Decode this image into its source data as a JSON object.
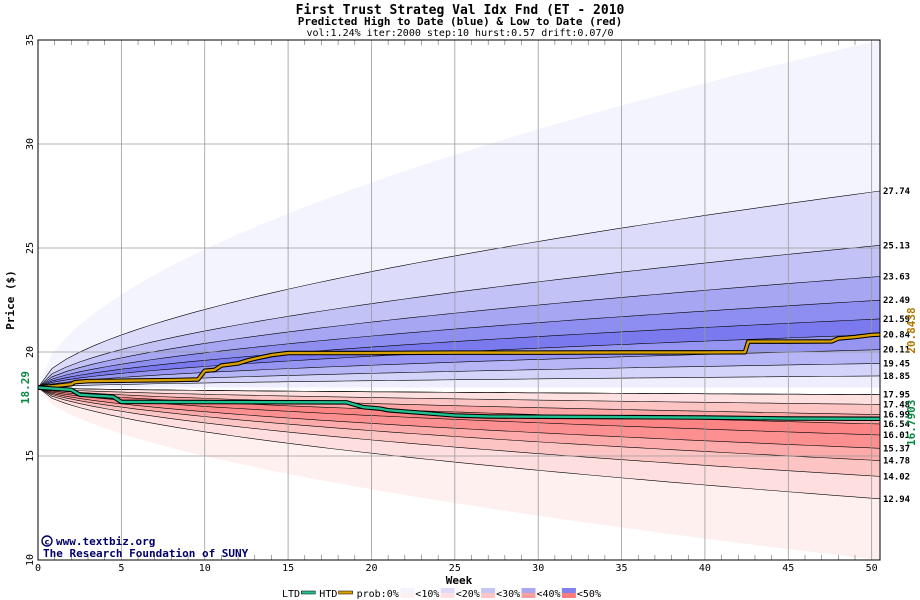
{
  "chart_data": {
    "type": "area",
    "title": "First Trust Strateg Val Idx Fnd (ET - 2010",
    "subtitle": "Predicted High to Date (blue) &  Low to Date (red)",
    "params": "vol:1.24% iter:2000 step:10 hurst:0.57 drift:0.07/0",
    "xlabel": "Week",
    "ylabel": "Price ($)",
    "xlim": [
      0,
      50.5
    ],
    "ylim": [
      10,
      35
    ],
    "x_ticks": [
      0,
      5,
      10,
      15,
      20,
      25,
      30,
      35,
      40,
      45,
      50
    ],
    "y_ticks": [
      10,
      15,
      20,
      25,
      30,
      35
    ],
    "grid": true,
    "start_price": 18.29,
    "start_label": "18.29",
    "high_bands": [
      {
        "end": 35.0,
        "color": "#f4f4fe"
      },
      {
        "end": 27.74,
        "color": "#dcdcfa"
      },
      {
        "end": 25.13,
        "color": "#c2c2f6"
      },
      {
        "end": 23.63,
        "color": "#a6a6f2"
      },
      {
        "end": 22.49,
        "color": "#8e8ef0"
      },
      {
        "end": 21.59,
        "color": "#7a7aee"
      },
      {
        "end": 20.84,
        "color": "#9696f2"
      },
      {
        "end": 20.11,
        "color": "#b6b6f6"
      },
      {
        "end": 19.45,
        "color": "#d4d4fa"
      },
      {
        "end": 18.85,
        "color": "#eeeefe"
      },
      {
        "end": 17.95,
        "color": "#ffffff"
      }
    ],
    "low_bands": [
      {
        "end": 10.0,
        "color": "#fff0f0"
      },
      {
        "end": 12.94,
        "color": "#fedede"
      },
      {
        "end": 14.02,
        "color": "#fdc4c4"
      },
      {
        "end": 14.78,
        "color": "#fcaaaa"
      },
      {
        "end": 15.37,
        "color": "#fc9090"
      },
      {
        "end": 16.01,
        "color": "#fc8484"
      },
      {
        "end": 16.54,
        "color": "#fca6a6"
      },
      {
        "end": 16.99,
        "color": "#fdc4c4"
      },
      {
        "end": 17.48,
        "color": "#fee0e0"
      },
      {
        "end": 17.95,
        "color": "#ffffff"
      }
    ],
    "band_labels": [
      "27.74",
      "25.13",
      "23.63",
      "22.49",
      "21.59",
      "20.84",
      "20.11",
      "19.45",
      "18.85",
      "17.95",
      "17.48",
      "16.99",
      "16.54",
      "16.01",
      "15.37",
      "14.78",
      "14.02",
      "12.94"
    ],
    "series": [
      {
        "name": "HTD",
        "color": "#d8a000",
        "x": [
          0,
          1,
          2,
          2.2,
          3,
          5,
          8,
          9.6,
          10,
          10.6,
          11,
          12,
          12.6,
          13,
          14,
          15,
          20,
          22,
          25,
          30,
          35,
          40,
          42.4,
          42.6,
          45,
          47.6,
          48,
          49,
          50,
          50.5
        ],
        "values": [
          18.29,
          18.36,
          18.45,
          18.55,
          18.6,
          18.62,
          18.65,
          18.68,
          19.1,
          19.14,
          19.35,
          19.45,
          19.6,
          19.68,
          19.85,
          19.95,
          19.95,
          19.96,
          19.97,
          19.97,
          19.98,
          19.98,
          19.99,
          20.5,
          20.5,
          20.51,
          20.65,
          20.72,
          20.82,
          20.84
        ]
      },
      {
        "name": "LTD",
        "color": "#20c090",
        "x": [
          0,
          2,
          2.5,
          3,
          4.5,
          5,
          18.5,
          19.5,
          20.5,
          21,
          25,
          27,
          30,
          35,
          40,
          45,
          50,
          50.5
        ],
        "values": [
          18.29,
          18.18,
          17.95,
          17.92,
          17.85,
          17.6,
          17.58,
          17.35,
          17.28,
          17.2,
          16.95,
          16.9,
          16.89,
          16.87,
          16.85,
          16.8,
          16.79,
          16.79
        ]
      }
    ],
    "end_labels": {
      "high": "20.8438",
      "low": "16.7903"
    },
    "legend": {
      "position": "bottom",
      "items": [
        "LTD",
        "HTD",
        "prob:0%",
        "<10%",
        "<20%",
        "<30%",
        "<40%",
        "<50%"
      ]
    },
    "credit_line1": "www.textbiz.org",
    "credit_line2": "The Research Foundation of SUNY"
  }
}
